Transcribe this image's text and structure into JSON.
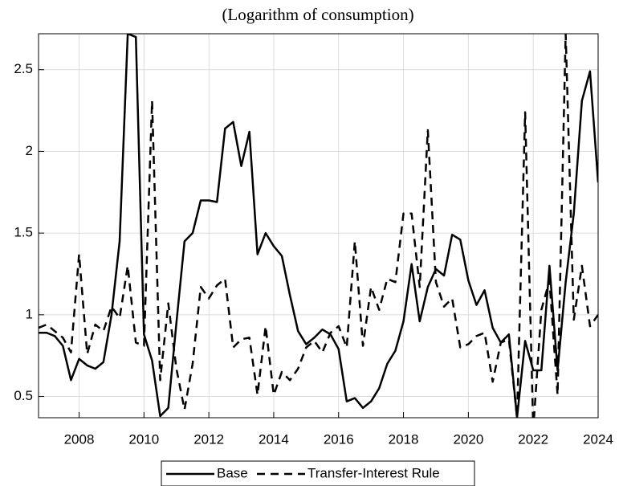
{
  "chart_data": {
    "type": "line",
    "title": "(Logarithm of consumption)",
    "x": [
      2006.75,
      2007,
      2007.25,
      2007.5,
      2007.75,
      2008,
      2008.25,
      2008.5,
      2008.75,
      2009,
      2009.25,
      2009.5,
      2009.75,
      2010,
      2010.25,
      2010.5,
      2010.75,
      2011,
      2011.25,
      2011.5,
      2011.75,
      2012,
      2012.25,
      2012.5,
      2012.75,
      2013,
      2013.25,
      2013.5,
      2013.75,
      2014,
      2014.25,
      2014.5,
      2014.75,
      2015,
      2015.25,
      2015.5,
      2015.75,
      2016,
      2016.25,
      2016.5,
      2016.75,
      2017,
      2017.25,
      2017.5,
      2017.75,
      2018,
      2018.25,
      2018.5,
      2018.75,
      2019,
      2019.25,
      2019.5,
      2019.75,
      2020,
      2020.25,
      2020.5,
      2020.75,
      2021,
      2021.25,
      2021.5,
      2021.75,
      2022,
      2022.25,
      2022.5,
      2022.75,
      2023,
      2023.25,
      2023.5,
      2023.75,
      2024
    ],
    "series": [
      {
        "name": "Base",
        "color": "#000000",
        "dash": "solid",
        "values": [
          0.89,
          0.89,
          0.87,
          0.81,
          0.6,
          0.73,
          0.69,
          0.67,
          0.71,
          1.0,
          1.45,
          2.72,
          2.7,
          0.88,
          0.72,
          0.38,
          0.43,
          0.95,
          1.45,
          1.5,
          1.7,
          1.7,
          1.69,
          2.14,
          2.18,
          1.91,
          2.12,
          1.37,
          1.5,
          1.42,
          1.36,
          1.12,
          0.9,
          0.82,
          0.86,
          0.91,
          0.88,
          0.79,
          0.47,
          0.49,
          0.43,
          0.47,
          0.55,
          0.7,
          0.78,
          0.96,
          1.31,
          0.96,
          1.17,
          1.28,
          1.24,
          1.49,
          1.46,
          1.21,
          1.06,
          1.15,
          0.92,
          0.83,
          0.88,
          0.37,
          0.84,
          0.66,
          0.66,
          1.3,
          0.66,
          1.2,
          1.62,
          2.31,
          2.49,
          1.81
        ]
      },
      {
        "name": "Transfer-Interest Rule",
        "color": "#000000",
        "dash": "dashed",
        "values": [
          0.92,
          0.94,
          0.9,
          0.86,
          0.77,
          1.37,
          0.76,
          0.94,
          0.9,
          1.05,
          0.98,
          1.3,
          0.83,
          0.81,
          2.31,
          0.6,
          1.07,
          0.67,
          0.42,
          0.7,
          1.17,
          1.1,
          1.18,
          1.22,
          0.8,
          0.85,
          0.86,
          0.51,
          0.93,
          0.51,
          0.65,
          0.6,
          0.67,
          0.8,
          0.84,
          0.77,
          0.89,
          0.93,
          0.8,
          1.45,
          0.81,
          1.17,
          1.03,
          1.22,
          1.2,
          1.62,
          1.62,
          1.17,
          2.13,
          1.2,
          1.05,
          1.1,
          0.8,
          0.82,
          0.87,
          0.89,
          0.59,
          0.83,
          0.85,
          0.37,
          2.24,
          0.3,
          1.03,
          1.21,
          0.51,
          2.72,
          0.97,
          1.3,
          0.93,
          1.0
        ]
      }
    ],
    "xlim": [
      2006.75,
      2024
    ],
    "xticks": [
      2008,
      2010,
      2012,
      2014,
      2016,
      2018,
      2020,
      2022,
      2024
    ],
    "ylim": [
      0.37,
      2.72
    ],
    "yticks": [
      0.5,
      1,
      1.5,
      2,
      2.5
    ],
    "grid": true,
    "legend": "bottom"
  }
}
